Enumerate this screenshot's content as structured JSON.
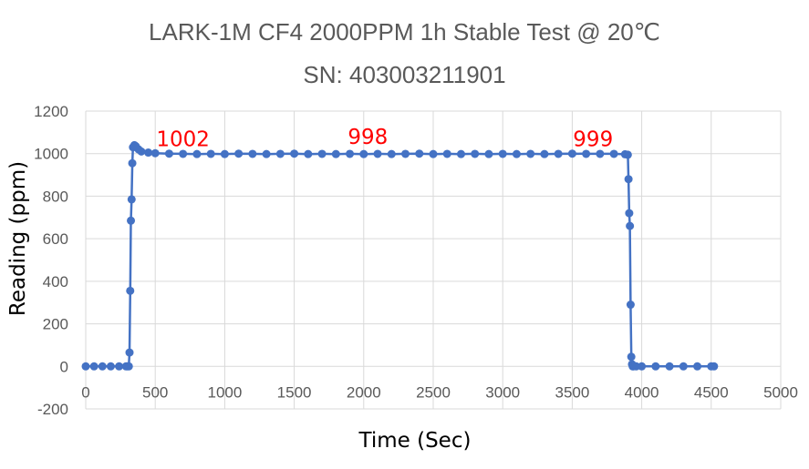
{
  "colors": {
    "series": "#4472C4",
    "annotation": "#FF0000",
    "grid": "#D9D9D9",
    "text": "#595959"
  },
  "chart_data": {
    "type": "line",
    "title": "LARK-1M CF4 2000PPM 1h Stable Test @ 20℃",
    "subtitle": "SN: 403003211901",
    "xlabel": "Time (Sec)",
    "ylabel": "Reading (ppm)",
    "xlim": [
      0,
      5000
    ],
    "ylim": [
      -200,
      1200
    ],
    "x_ticks": [
      0,
      500,
      1000,
      1500,
      2000,
      2500,
      3000,
      3500,
      4000,
      4500,
      5000
    ],
    "y_ticks": [
      -200,
      0,
      200,
      400,
      600,
      800,
      1000,
      1200
    ],
    "grid": true,
    "legend": "none",
    "markers": true,
    "annotations": [
      {
        "text": "1002",
        "x": 700,
        "y": 1035
      },
      {
        "text": "998",
        "x": 2030,
        "y": 1045
      },
      {
        "text": "999",
        "x": 3650,
        "y": 1035
      }
    ],
    "series": [
      {
        "x": [
          0,
          60,
          120,
          180,
          240,
          290,
          300,
          310,
          315,
          320,
          325,
          330,
          335,
          340,
          350,
          360,
          380,
          400,
          450,
          500,
          600,
          700,
          800,
          900,
          1000,
          1100,
          1200,
          1300,
          1400,
          1500,
          1600,
          1700,
          1800,
          1900,
          2000,
          2100,
          2200,
          2300,
          2400,
          2500,
          2600,
          2700,
          2800,
          2900,
          3000,
          3100,
          3200,
          3300,
          3400,
          3500,
          3600,
          3700,
          3800,
          3880,
          3900,
          3905,
          3910,
          3915,
          3920,
          3925,
          3930,
          3935,
          3940,
          3960,
          4000,
          4100,
          4200,
          4300,
          4400,
          4500,
          4520
        ],
        "y": [
          0,
          0,
          0,
          0,
          0,
          0,
          0,
          0,
          65,
          355,
          685,
          785,
          955,
          1030,
          1040,
          1035,
          1020,
          1010,
          1005,
          1002,
          1000,
          999,
          998,
          999,
          998,
          1000,
          999,
          998,
          999,
          1000,
          998,
          999,
          998,
          999,
          998,
          999,
          998,
          999,
          1000,
          998,
          999,
          998,
          999,
          998,
          999,
          998,
          999,
          998,
          999,
          1000,
          999,
          999,
          999,
          997,
          995,
          880,
          720,
          660,
          290,
          45,
          10,
          0,
          0,
          0,
          0,
          0,
          0,
          0,
          0,
          0,
          0
        ]
      }
    ]
  }
}
